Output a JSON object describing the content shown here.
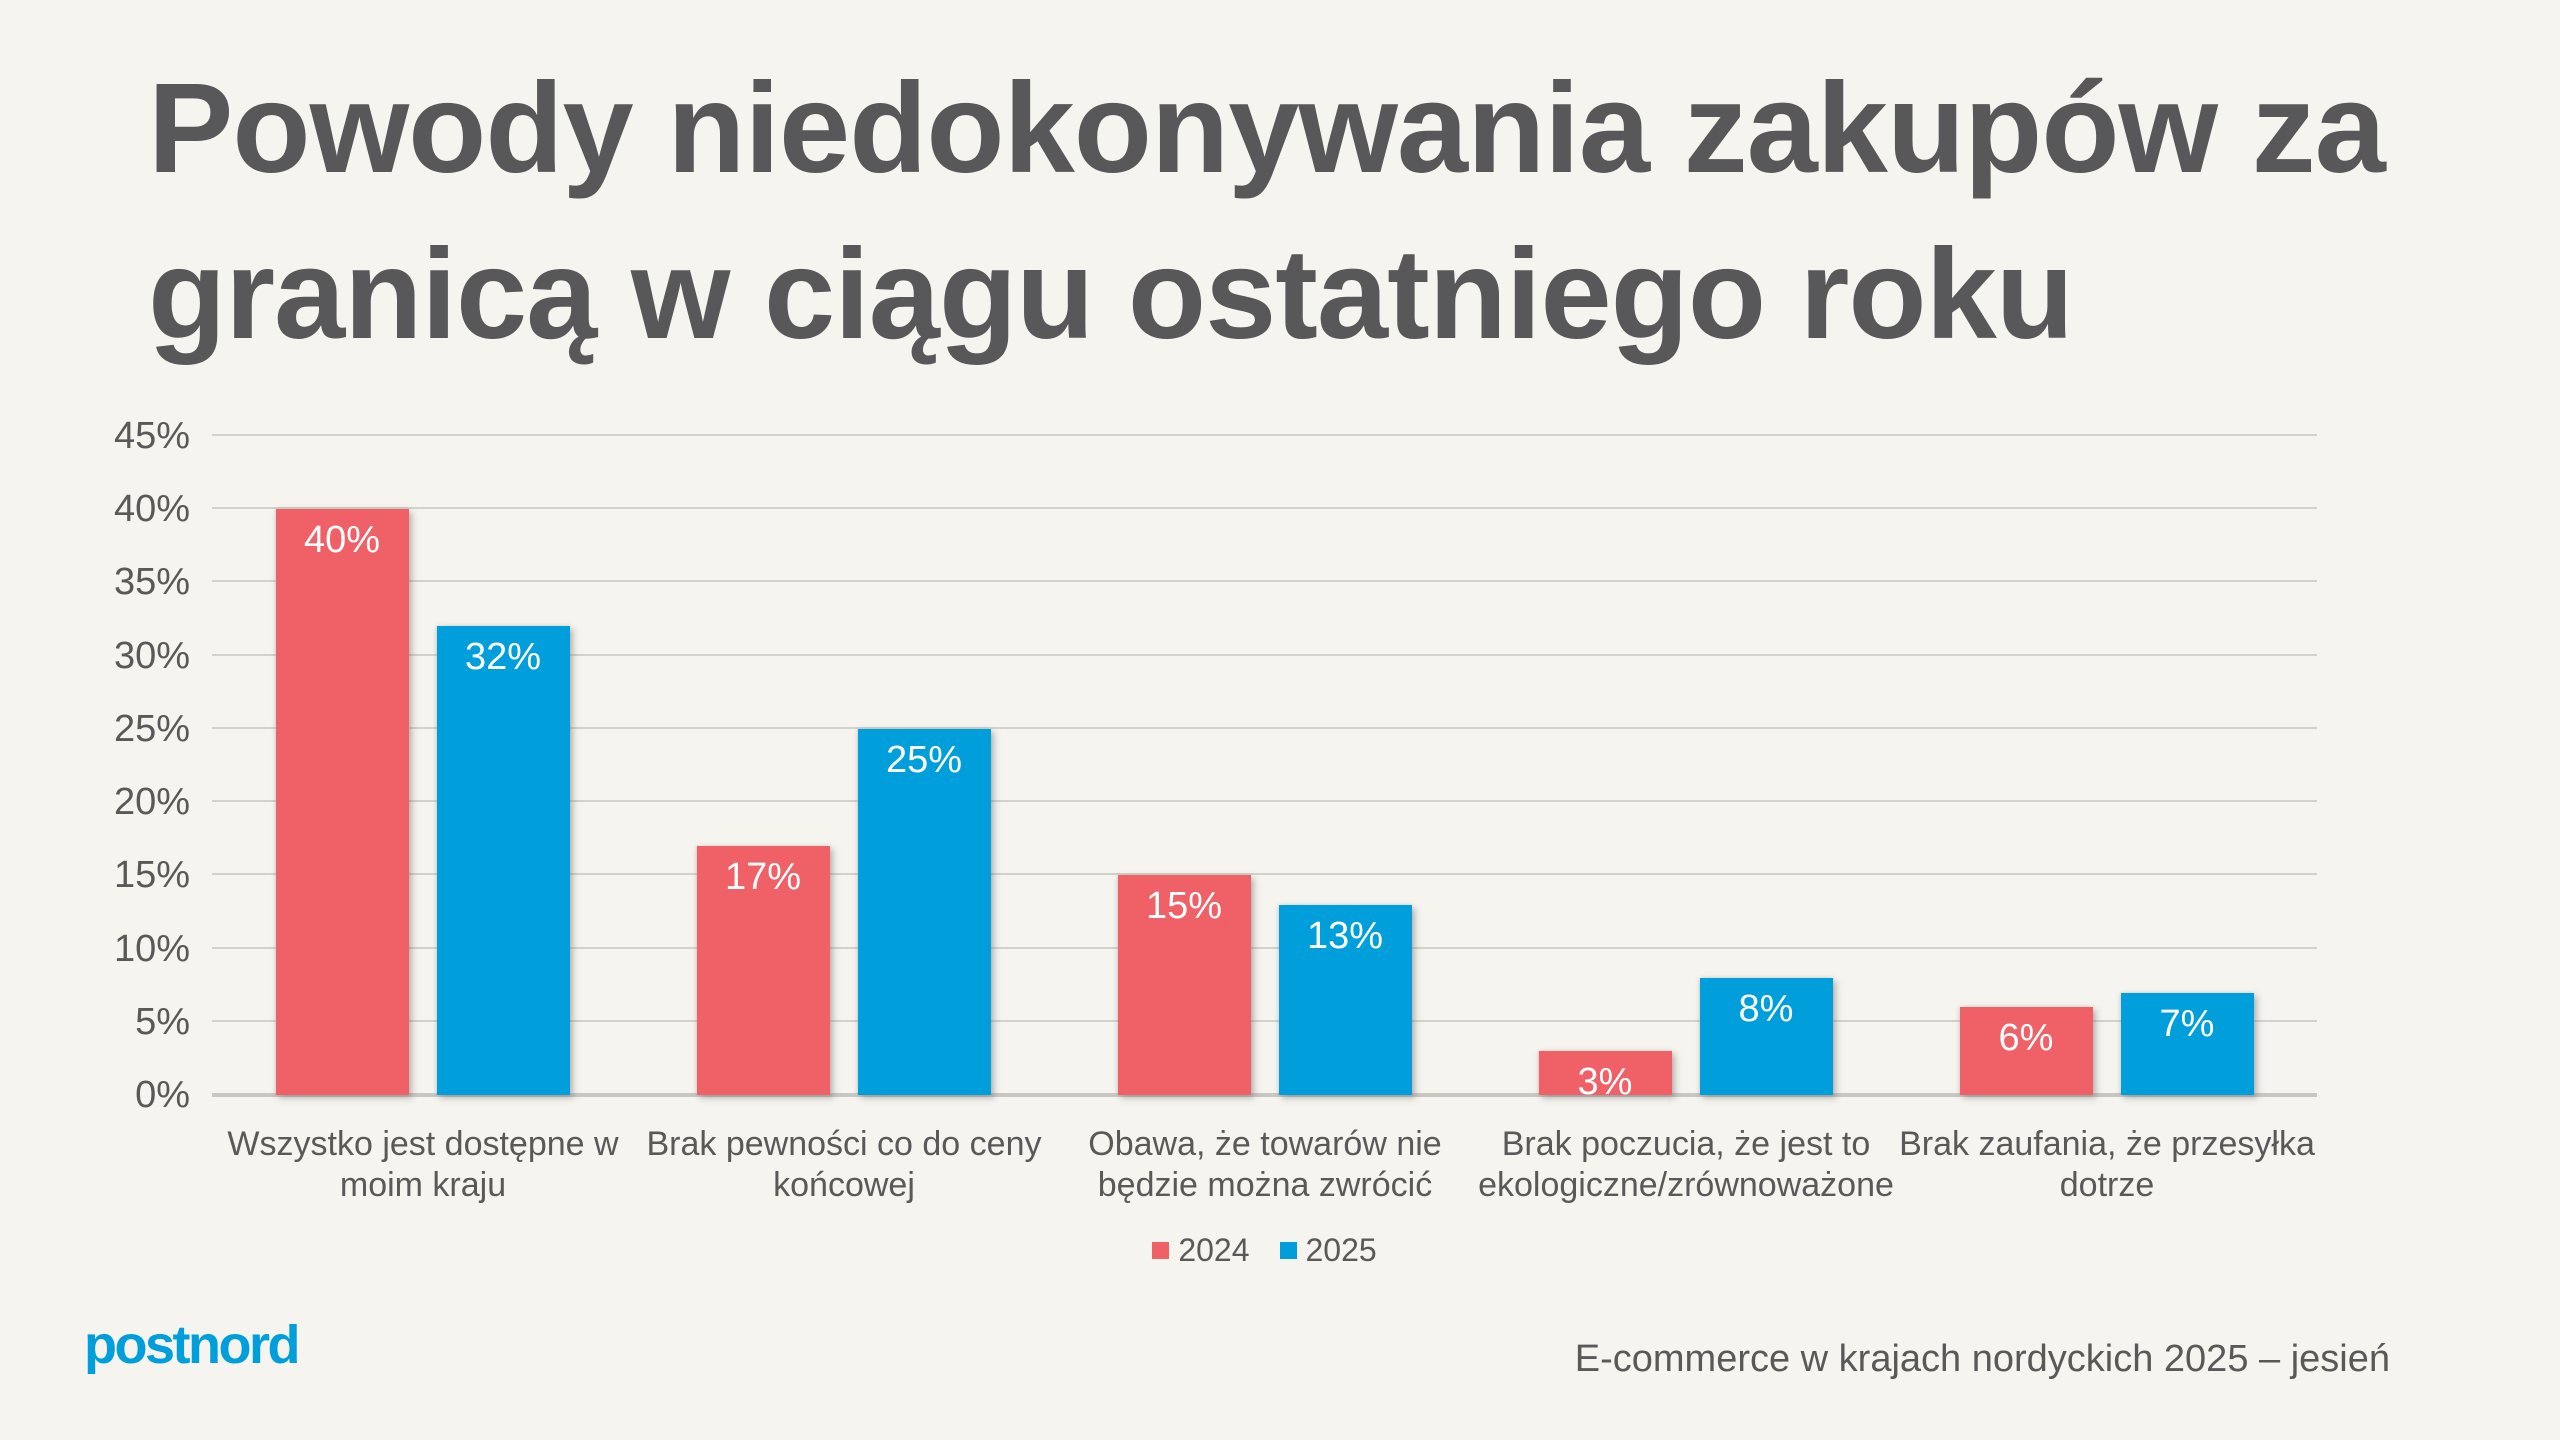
{
  "slide": {
    "title": "Powody niedokonywania zakupów za granicą w ciągu ostatniego roku",
    "footer": {
      "logo_text": "postnord",
      "source_text": "E-commerce w krajach nordyckich 2025 – jesień"
    }
  },
  "colors": {
    "background": "#F6F4EF",
    "title": "#58585A",
    "text": "#595959",
    "gridline": "#D3D1CB",
    "axis_line": "#C9C7C2",
    "bar_label": "#FFFFFF",
    "logo": "#009FDB"
  },
  "chart_data": {
    "type": "bar",
    "title": "Powody niedokonywania zakupów za granicą w ciągu ostatniego roku",
    "categories": [
      "Wszystko jest dostępne w moim kraju",
      "Brak pewności co do ceny końcowej",
      "Obawa, że towarów nie będzie można zwrócić",
      "Brak poczucia, że jest to ekologiczne/zrównoważone",
      "Brak zaufania, że przesyłka dotrze"
    ],
    "series": [
      {
        "name": "2024",
        "color": "#EF6067",
        "values": [
          40,
          17,
          15,
          3,
          6
        ]
      },
      {
        "name": "2025",
        "color": "#009FDB",
        "values": [
          32,
          25,
          13,
          8,
          7
        ]
      }
    ],
    "value_suffix": "%",
    "xlabel": "",
    "ylabel": "",
    "ylim": [
      0,
      45
    ],
    "ytick_step": 5,
    "ytick_labels": [
      "0%",
      "5%",
      "10%",
      "15%",
      "20%",
      "25%",
      "30%",
      "35%",
      "40%",
      "45%"
    ],
    "grid": "horizontal",
    "legend_position": "bottom"
  }
}
